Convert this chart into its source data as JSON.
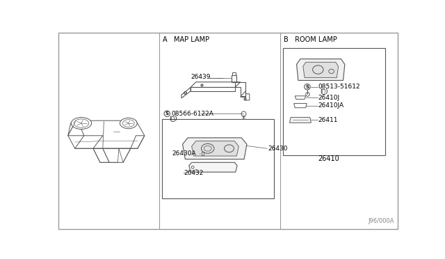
{
  "bg_color": "#ffffff",
  "line_color": "#555555",
  "text_color": "#000000",
  "section_a_label": "A   MAP LAMP",
  "section_b_label": "B   ROOM LAMP",
  "diagram_code": "J96/000A",
  "figsize": [
    6.4,
    3.72
  ],
  "dpi": 100
}
